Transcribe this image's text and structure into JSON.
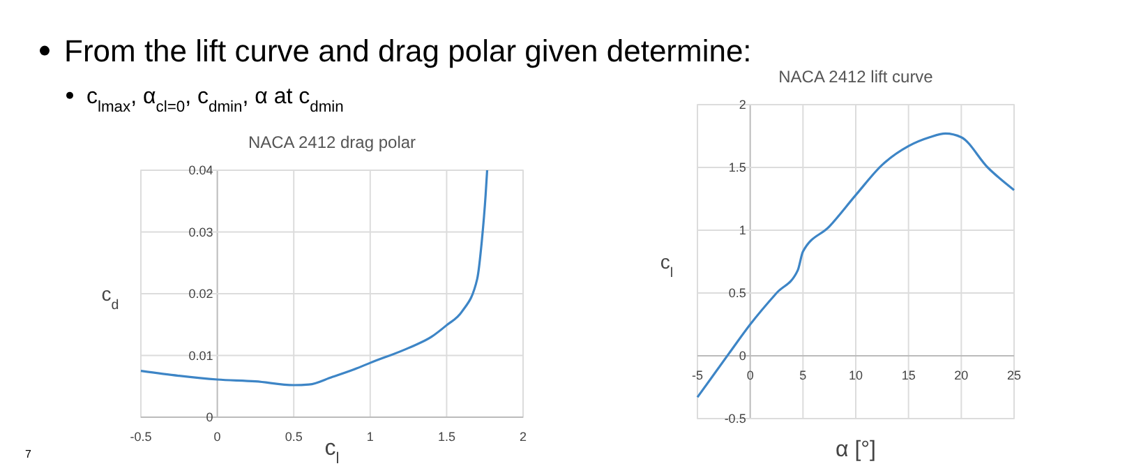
{
  "chart_data": [
    {
      "type": "line",
      "title": "NACA 2412 drag polar",
      "xlabel": "c$_{l}$",
      "ylabel": "c$_{d}$",
      "color": "#3d85c6",
      "grid": true,
      "marker": "none",
      "line_style": "solid",
      "x": [
        -0.5,
        -0.25,
        0,
        0.25,
        0.5,
        0.6,
        0.75,
        0.9,
        1,
        1.25,
        1.4,
        1.5,
        1.6,
        1.7,
        1.73,
        1.755,
        1.765
      ],
      "values": [
        0.0075,
        0.0067,
        0.0061,
        0.0058,
        0.0052,
        0.0053,
        0.0065,
        0.0078,
        0.0088,
        0.0112,
        0.013,
        0.0149,
        0.0171,
        0.0224,
        0.0285,
        0.036,
        0.04
      ],
      "xlim": [
        -0.5,
        2
      ],
      "xticks": [
        -0.5,
        0,
        0.5,
        1,
        1.5,
        2
      ],
      "ylim": [
        0,
        0.04
      ],
      "yticks": [
        0,
        0.01,
        0.02,
        0.03,
        0.04
      ],
      "annotations": [
        "From the lift curve and drag polar given determine:",
        "c$_{lmax}$, α$_{cl=0}$, c$_{dmin}$, α at c$_{dmin}$",
        "7"
      ]
    },
    {
      "type": "line",
      "title": "NACA 2412 lift curve",
      "xlabel": "α [°]",
      "ylabel": "c$_{l}$",
      "color": "#3d85c6",
      "grid": true,
      "marker": "none",
      "line_style": "solid",
      "x": [
        -5,
        -2,
        0,
        2.5,
        4.5,
        5,
        7.5,
        10,
        12.5,
        15,
        17,
        18.5,
        20,
        22.5,
        25
      ],
      "values": [
        -0.33,
        0.02,
        0.25,
        0.5,
        0.68,
        0.83,
        1.03,
        1.28,
        1.52,
        1.67,
        1.74,
        1.77,
        1.74,
        1.5,
        1.32
      ],
      "xlim": [
        -5,
        25
      ],
      "xticks": [
        -5,
        0,
        5,
        10,
        15,
        20,
        25
      ],
      "ylim": [
        -0.5,
        2
      ],
      "yticks": [
        -0.5,
        0,
        0.5,
        1,
        1.5,
        2
      ]
    }
  ]
}
